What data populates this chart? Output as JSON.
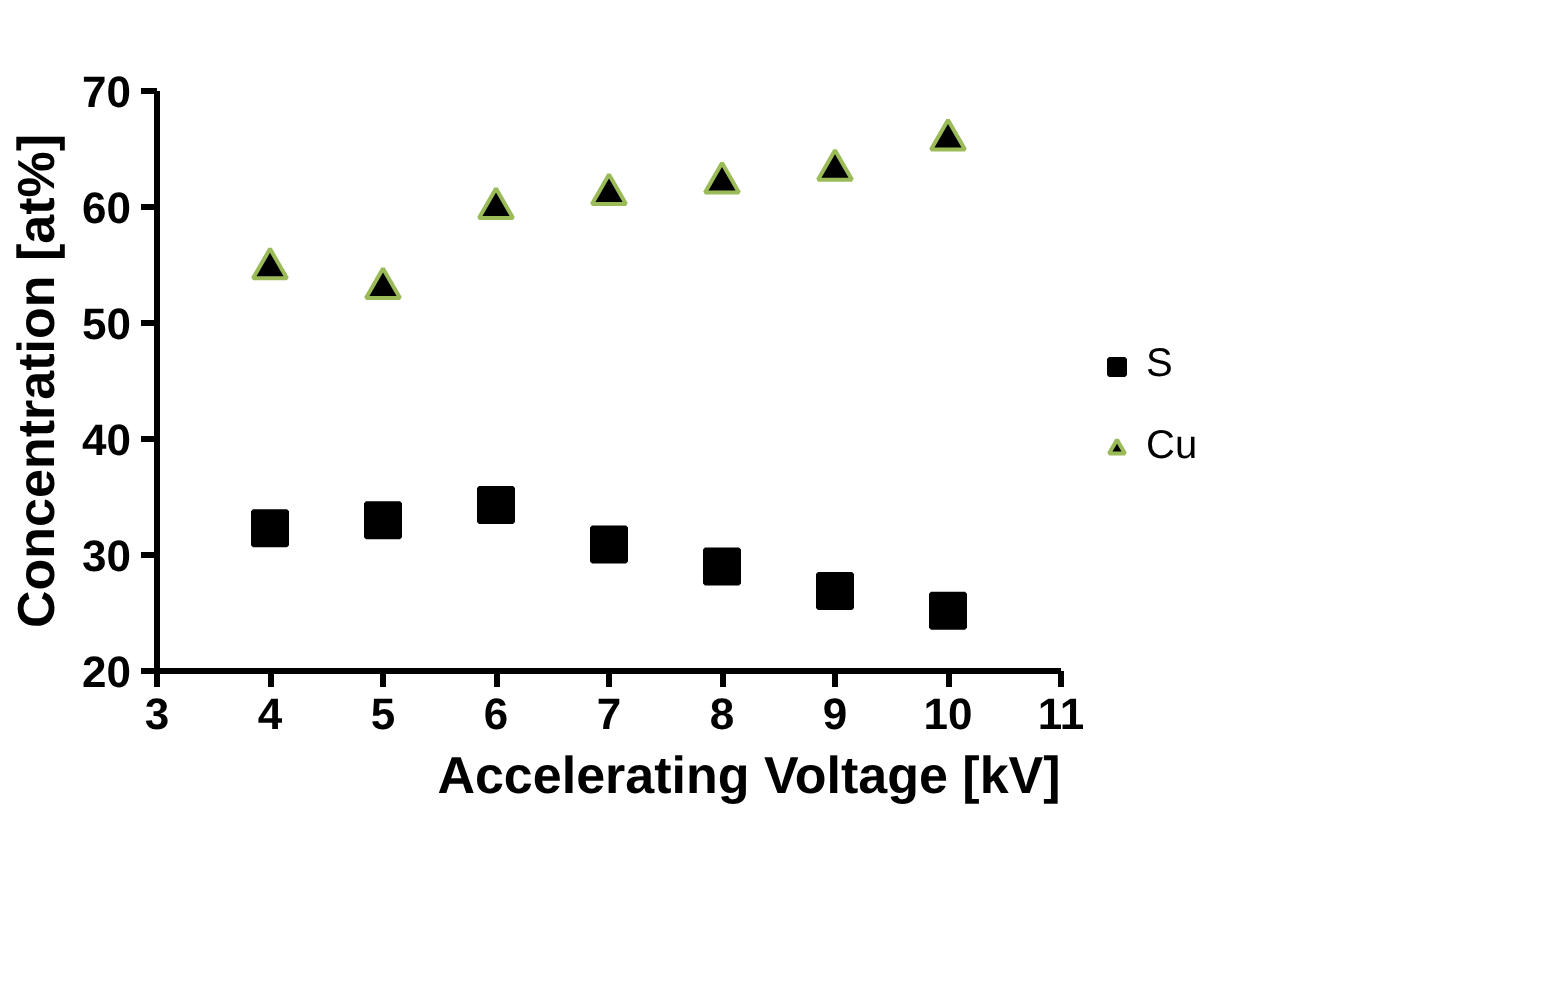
{
  "chart_data": {
    "type": "scatter",
    "xlabel": "Accelerating Voltage [kV]",
    "ylabel": "Concentration [at%]",
    "x": [
      4,
      5,
      6,
      7,
      8,
      9,
      10
    ],
    "series": [
      {
        "name": "S",
        "color": "#000000",
        "marker": "square",
        "values": [
          32.3,
          33.0,
          34.3,
          30.9,
          29.0,
          26.9,
          25.2
        ]
      },
      {
        "name": "Cu",
        "color": "#9bbb59",
        "marker": "triangle",
        "values": [
          54.7,
          53.0,
          59.9,
          61.1,
          62.1,
          63.2,
          65.8
        ]
      }
    ],
    "xlim": [
      3,
      11
    ],
    "xticks": [
      3,
      4,
      5,
      6,
      7,
      8,
      9,
      10,
      11
    ],
    "ylim": [
      20,
      70
    ],
    "yticks": [
      20,
      30,
      40,
      50,
      60,
      70
    ],
    "grid": false,
    "legend": "right"
  }
}
